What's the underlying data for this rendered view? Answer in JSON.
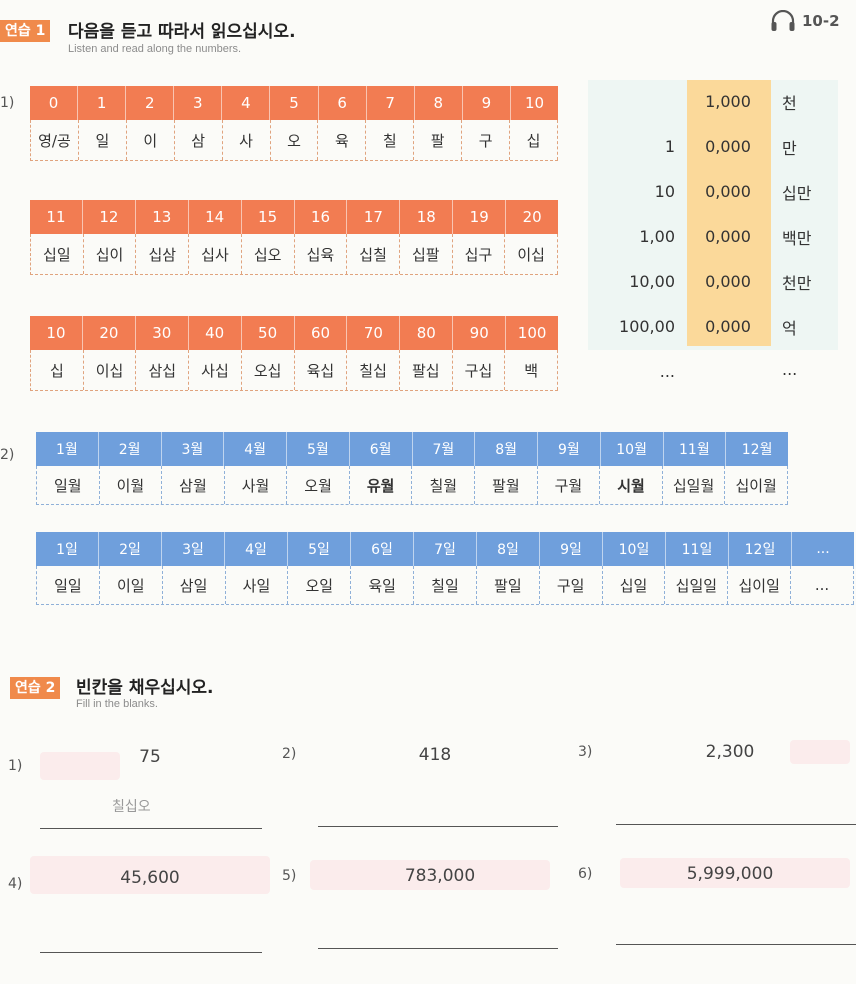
{
  "ex1": {
    "badge": "연습 1",
    "title": "다음을 듣고 따라서 읽으십시오.",
    "subtitle": "Listen and read along the numbers.",
    "audio_track": "10-2",
    "part1_label": "1)",
    "part2_label": "2)"
  },
  "tables": {
    "digits": {
      "nums": [
        "0",
        "1",
        "2",
        "3",
        "4",
        "5",
        "6",
        "7",
        "8",
        "9",
        "10"
      ],
      "words": [
        "영/공",
        "일",
        "이",
        "삼",
        "사",
        "오",
        "육",
        "칠",
        "팔",
        "구",
        "십"
      ]
    },
    "teens": {
      "nums": [
        "11",
        "12",
        "13",
        "14",
        "15",
        "16",
        "17",
        "18",
        "19",
        "20"
      ],
      "words": [
        "십일",
        "십이",
        "십삼",
        "십사",
        "십오",
        "십육",
        "십칠",
        "십팔",
        "십구",
        "이십"
      ]
    },
    "tens": {
      "nums": [
        "10",
        "20",
        "30",
        "40",
        "50",
        "60",
        "70",
        "80",
        "90",
        "100"
      ],
      "words": [
        "십",
        "이십",
        "삼십",
        "사십",
        "오십",
        "육십",
        "칠십",
        "팔십",
        "구십",
        "백"
      ]
    },
    "months": {
      "nums": [
        "1월",
        "2월",
        "3월",
        "4월",
        "5월",
        "6월",
        "7월",
        "8월",
        "9월",
        "10월",
        "11월",
        "12월"
      ],
      "words": [
        "일월",
        "이월",
        "삼월",
        "사월",
        "오월",
        "유월",
        "칠월",
        "팔월",
        "구월",
        "시월",
        "십일월",
        "십이월"
      ]
    },
    "days": {
      "nums": [
        "1일",
        "2일",
        "3일",
        "4일",
        "5일",
        "6일",
        "7일",
        "8일",
        "9일",
        "10일",
        "11일",
        "12일",
        "..."
      ],
      "words": [
        "일일",
        "이일",
        "삼일",
        "사일",
        "오일",
        "육일",
        "칠일",
        "팔일",
        "구일",
        "십일",
        "십일일",
        "십이일",
        "..."
      ]
    }
  },
  "place_values": [
    {
      "left": "",
      "mid": "1,000",
      "unit": "천"
    },
    {
      "left": "1",
      "mid": "0,000",
      "unit": "만"
    },
    {
      "left": "10",
      "mid": "0,000",
      "unit": "십만"
    },
    {
      "left": "1,00",
      "mid": "0,000",
      "unit": "백만"
    },
    {
      "left": "10,00",
      "mid": "0,000",
      "unit": "천만"
    },
    {
      "left": "100,00",
      "mid": "0,000",
      "unit": "억"
    },
    {
      "left": "...",
      "mid": "",
      "unit": "..."
    }
  ],
  "ex2": {
    "badge": "연습 2",
    "title": "빈칸을 채우십시오.",
    "subtitle": "Fill in the blanks.",
    "items": [
      {
        "num": "1)",
        "value": "75",
        "answer": "칠십오"
      },
      {
        "num": "2)",
        "value": "418",
        "answer": ""
      },
      {
        "num": "3)",
        "value": "2,300",
        "answer": ""
      },
      {
        "num": "4)",
        "value": "45,600",
        "answer": ""
      },
      {
        "num": "5)",
        "value": "783,000",
        "answer": ""
      },
      {
        "num": "6)",
        "value": "5,999,000",
        "answer": ""
      }
    ]
  },
  "colors": {
    "orange": "#f08a4b",
    "orange_header": "#f27c52",
    "blue_header": "#6f9fdc",
    "highlight": "#fbd99a",
    "mint": "#eef6f3"
  }
}
